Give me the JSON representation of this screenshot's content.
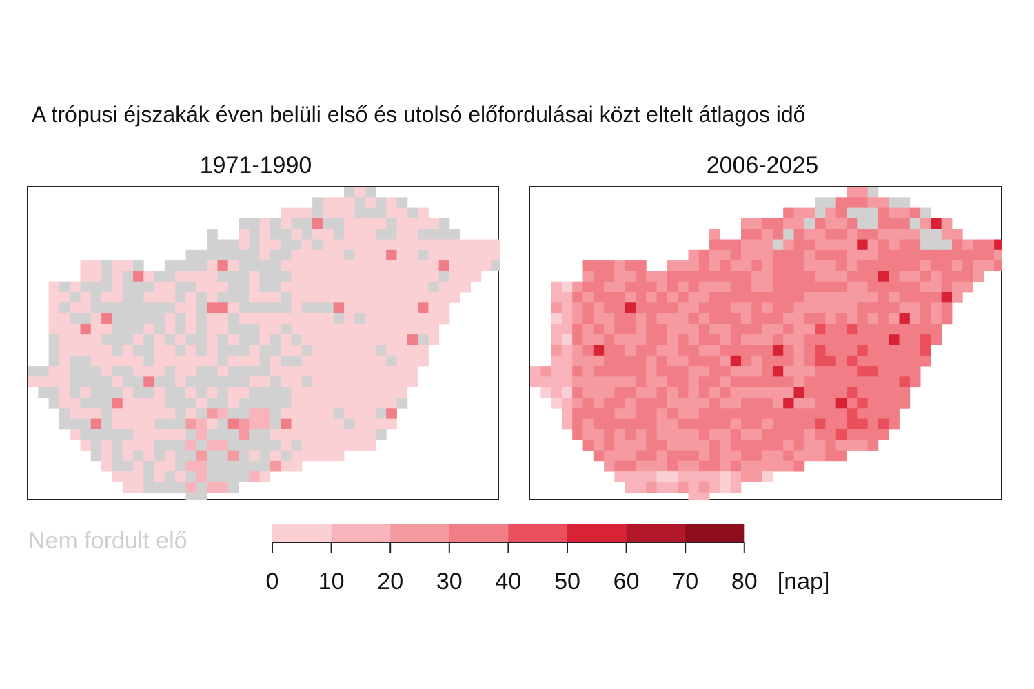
{
  "title": "A trópusi éjszakák éven belüli első és utolsó előfordulásai közt eltelt átlagos idő",
  "panels": [
    {
      "label": "1971-1990"
    },
    {
      "label": "2006-2025"
    }
  ],
  "no_occurrence_label": "Nem fordult elő",
  "no_occurrence_color": "#d1d1d1",
  "legend": {
    "ticks": [
      "0",
      "10",
      "20",
      "30",
      "40",
      "50",
      "60",
      "70",
      "80"
    ],
    "unit": "[nap]",
    "colors": [
      "#fbd0d4",
      "#f8b4ba",
      "#f59aa1",
      "#f17d87",
      "#ea4f5b",
      "#d72335",
      "#b01728",
      "#8d0d1c"
    ]
  }
}
